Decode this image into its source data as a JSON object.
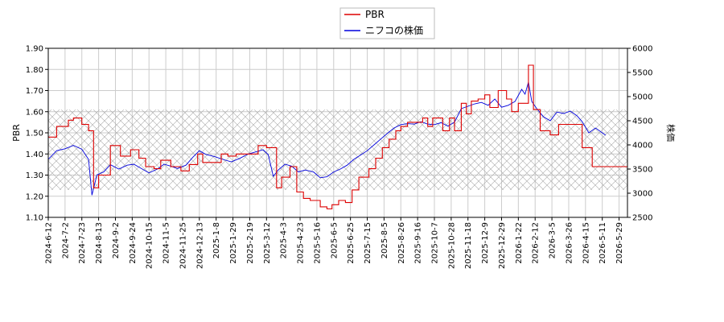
{
  "chart_data": {
    "type": "line",
    "grid": true,
    "legend_position": "top-center",
    "ylabel_left": "PBR",
    "ylabel_right": "株価",
    "yleft_range": [
      1.1,
      1.9
    ],
    "yleft_ticks": [
      "1.10",
      "1.20",
      "1.30",
      "1.40",
      "1.50",
      "1.60",
      "1.70",
      "1.80",
      "1.90"
    ],
    "yright_range": [
      2500,
      6000
    ],
    "yright_ticks": [
      "2500",
      "3000",
      "3500",
      "4000",
      "4500",
      "5000",
      "5500",
      "6000"
    ],
    "x_tick_labels": [
      "2024-6-12",
      "2024-7-2",
      "2024-7-23",
      "2024-8-13",
      "2024-9-2",
      "2024-9-24",
      "2024-10-15",
      "2024-11-5",
      "2024-11-25",
      "2024-12-13",
      "2025-1-8",
      "2025-1-29",
      "2025-2-19",
      "2025-3-12",
      "2025-4-3",
      "2025-4-23",
      "2025-5-16",
      "2025-6-5",
      "2025-6-25",
      "2025-7-15",
      "2025-8-5",
      "2025-8-26",
      "2025-9-16",
      "2025-10-7",
      "2025-10-28",
      "2025-11-18",
      "2025-12-9",
      "2025-12-29",
      "2026-1-22",
      "2026-2-12",
      "2026-3-5",
      "2026-3-26",
      "2026-4-15",
      "2026-5-11",
      "2026-5-29"
    ],
    "band": {
      "from": 1.23,
      "to": 1.61,
      "axis": "left"
    },
    "series": [
      {
        "name": "PBR",
        "axis": "left",
        "color": "#dd0000",
        "step": true,
        "points": [
          [
            0,
            1.48
          ],
          [
            0.5,
            1.53
          ],
          [
            1.2,
            1.56
          ],
          [
            1.5,
            1.57
          ],
          [
            2.0,
            1.54
          ],
          [
            2.4,
            1.51
          ],
          [
            2.7,
            1.24
          ],
          [
            3.0,
            1.3
          ],
          [
            3.7,
            1.44
          ],
          [
            4.3,
            1.39
          ],
          [
            4.9,
            1.42
          ],
          [
            5.4,
            1.38
          ],
          [
            5.8,
            1.34
          ],
          [
            6.3,
            1.33
          ],
          [
            6.7,
            1.37
          ],
          [
            7.3,
            1.34
          ],
          [
            7.9,
            1.32
          ],
          [
            8.4,
            1.35
          ],
          [
            8.9,
            1.4
          ],
          [
            9.2,
            1.36
          ],
          [
            9.8,
            1.36
          ],
          [
            10.3,
            1.4
          ],
          [
            10.7,
            1.39
          ],
          [
            11.2,
            1.4
          ],
          [
            12.0,
            1.4
          ],
          [
            12.5,
            1.44
          ],
          [
            13.0,
            1.43
          ],
          [
            13.6,
            1.24
          ],
          [
            13.9,
            1.29
          ],
          [
            14.4,
            1.34
          ],
          [
            14.8,
            1.22
          ],
          [
            15.2,
            1.19
          ],
          [
            15.6,
            1.18
          ],
          [
            16.2,
            1.15
          ],
          [
            16.6,
            1.14
          ],
          [
            16.9,
            1.16
          ],
          [
            17.3,
            1.18
          ],
          [
            17.7,
            1.17
          ],
          [
            18.1,
            1.23
          ],
          [
            18.5,
            1.29
          ],
          [
            19.1,
            1.33
          ],
          [
            19.5,
            1.38
          ],
          [
            19.9,
            1.43
          ],
          [
            20.3,
            1.47
          ],
          [
            20.7,
            1.51
          ],
          [
            21.0,
            1.53
          ],
          [
            21.4,
            1.55
          ],
          [
            22.0,
            1.55
          ],
          [
            22.3,
            1.57
          ],
          [
            22.6,
            1.53
          ],
          [
            22.9,
            1.57
          ],
          [
            23.5,
            1.51
          ],
          [
            23.9,
            1.57
          ],
          [
            24.2,
            1.51
          ],
          [
            24.6,
            1.64
          ],
          [
            24.9,
            1.59
          ],
          [
            25.2,
            1.65
          ],
          [
            25.6,
            1.66
          ],
          [
            26.0,
            1.68
          ],
          [
            26.3,
            1.62
          ],
          [
            26.8,
            1.7
          ],
          [
            27.3,
            1.66
          ],
          [
            27.6,
            1.6
          ],
          [
            28.0,
            1.64
          ],
          [
            28.6,
            1.82
          ],
          [
            28.9,
            1.61
          ],
          [
            29.3,
            1.51
          ],
          [
            29.9,
            1.49
          ],
          [
            30.4,
            1.54
          ],
          [
            31.2,
            1.54
          ],
          [
            31.8,
            1.43
          ],
          [
            32.4,
            1.34
          ],
          [
            33.2,
            1.34
          ]
        ]
      },
      {
        "name": "ニフコの株価",
        "axis": "right",
        "color": "#0000dd",
        "step": false,
        "points": [
          [
            0,
            3700
          ],
          [
            0.5,
            3880
          ],
          [
            1.0,
            3920
          ],
          [
            1.5,
            3990
          ],
          [
            2.0,
            3910
          ],
          [
            2.4,
            3700
          ],
          [
            2.6,
            2960
          ],
          [
            2.9,
            3380
          ],
          [
            3.3,
            3440
          ],
          [
            3.7,
            3590
          ],
          [
            4.2,
            3500
          ],
          [
            4.7,
            3580
          ],
          [
            5.1,
            3600
          ],
          [
            5.6,
            3500
          ],
          [
            6.0,
            3420
          ],
          [
            6.5,
            3500
          ],
          [
            6.9,
            3600
          ],
          [
            7.3,
            3560
          ],
          [
            7.7,
            3510
          ],
          [
            8.2,
            3580
          ],
          [
            8.6,
            3740
          ],
          [
            9.0,
            3880
          ],
          [
            9.4,
            3800
          ],
          [
            9.9,
            3760
          ],
          [
            10.4,
            3700
          ],
          [
            10.9,
            3650
          ],
          [
            11.4,
            3720
          ],
          [
            11.9,
            3810
          ],
          [
            12.4,
            3860
          ],
          [
            12.8,
            3900
          ],
          [
            13.1,
            3800
          ],
          [
            13.4,
            3350
          ],
          [
            13.7,
            3480
          ],
          [
            14.1,
            3600
          ],
          [
            14.5,
            3560
          ],
          [
            14.9,
            3440
          ],
          [
            15.3,
            3480
          ],
          [
            15.8,
            3440
          ],
          [
            16.2,
            3320
          ],
          [
            16.6,
            3340
          ],
          [
            17.0,
            3440
          ],
          [
            17.4,
            3500
          ],
          [
            17.8,
            3580
          ],
          [
            18.2,
            3700
          ],
          [
            18.6,
            3790
          ],
          [
            19.0,
            3880
          ],
          [
            19.4,
            4000
          ],
          [
            19.8,
            4120
          ],
          [
            20.2,
            4240
          ],
          [
            20.6,
            4350
          ],
          [
            21.0,
            4420
          ],
          [
            21.4,
            4440
          ],
          [
            21.8,
            4430
          ],
          [
            22.2,
            4480
          ],
          [
            22.6,
            4430
          ],
          [
            23.0,
            4420
          ],
          [
            23.4,
            4460
          ],
          [
            23.8,
            4390
          ],
          [
            24.2,
            4470
          ],
          [
            24.6,
            4750
          ],
          [
            25.0,
            4800
          ],
          [
            25.4,
            4850
          ],
          [
            25.8,
            4880
          ],
          [
            26.2,
            4820
          ],
          [
            26.6,
            4950
          ],
          [
            27.0,
            4780
          ],
          [
            27.4,
            4820
          ],
          [
            27.8,
            4900
          ],
          [
            28.2,
            5150
          ],
          [
            28.4,
            5050
          ],
          [
            28.6,
            5300
          ],
          [
            28.8,
            4900
          ],
          [
            29.1,
            4750
          ],
          [
            29.5,
            4580
          ],
          [
            29.9,
            4500
          ],
          [
            30.3,
            4680
          ],
          [
            30.7,
            4650
          ],
          [
            31.1,
            4700
          ],
          [
            31.5,
            4600
          ],
          [
            31.8,
            4480
          ],
          [
            32.2,
            4250
          ],
          [
            32.6,
            4350
          ],
          [
            33.2,
            4200
          ]
        ]
      }
    ]
  }
}
